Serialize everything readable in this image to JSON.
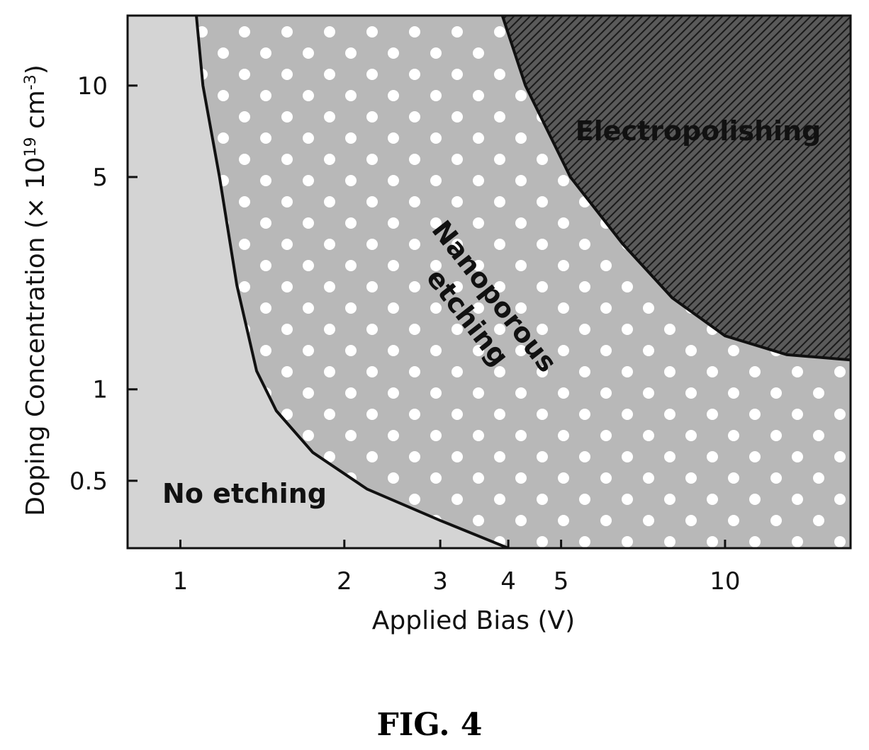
{
  "chart_data": {
    "type": "area",
    "xlabel": "Applied Bias (V)",
    "ylabel": "Doping Concentration (× 10^19 cm^-3)",
    "ylabel_parts": {
      "main": "Doping Concentration (× 10",
      "exp1": "19",
      "mid": " cm",
      "exp2": "-3",
      "end": ")"
    },
    "x_scale": "log",
    "y_scale": "log",
    "xlim": [
      0.8,
      17
    ],
    "ylim": [
      0.3,
      17
    ],
    "x_ticks": [
      1,
      2,
      3,
      4,
      5,
      10
    ],
    "x_tick_labels": [
      "1",
      "2",
      "3",
      "4",
      "5",
      "10"
    ],
    "y_ticks": [
      0.5,
      1,
      5,
      10
    ],
    "y_tick_labels": [
      "0.5",
      "1",
      "5",
      "10"
    ],
    "grid": false,
    "regions": [
      {
        "name": "No etching",
        "label_lines": [
          "No etching"
        ],
        "fill": "#d4d4d4"
      },
      {
        "name": "Nanoporous etching",
        "label_lines": [
          "Nanoporous",
          "etching"
        ],
        "fill": "#b8b8b8"
      },
      {
        "name": "Electropolishing",
        "label_lines": [
          "Electropolishing"
        ],
        "fill": "#4a4a4a"
      }
    ],
    "boundaries": [
      {
        "between": [
          "No etching",
          "Nanoporous etching"
        ],
        "points": [
          [
            1.07,
            17
          ],
          [
            1.1,
            10
          ],
          [
            1.18,
            5
          ],
          [
            1.27,
            2.2
          ],
          [
            1.38,
            1.15
          ],
          [
            1.5,
            0.85
          ],
          [
            1.75,
            0.62
          ],
          [
            2.2,
            0.47
          ],
          [
            3.0,
            0.37
          ],
          [
            4.0,
            0.3
          ]
        ]
      },
      {
        "between": [
          "Nanoporous etching",
          "Electropolishing"
        ],
        "points": [
          [
            3.9,
            17
          ],
          [
            4.3,
            10
          ],
          [
            5.2,
            5
          ],
          [
            6.5,
            3.0
          ],
          [
            8.0,
            2.0
          ],
          [
            10.0,
            1.5
          ],
          [
            13.0,
            1.3
          ],
          [
            17.0,
            1.25
          ]
        ]
      }
    ]
  },
  "figure": {
    "caption": "FIG. 4"
  }
}
